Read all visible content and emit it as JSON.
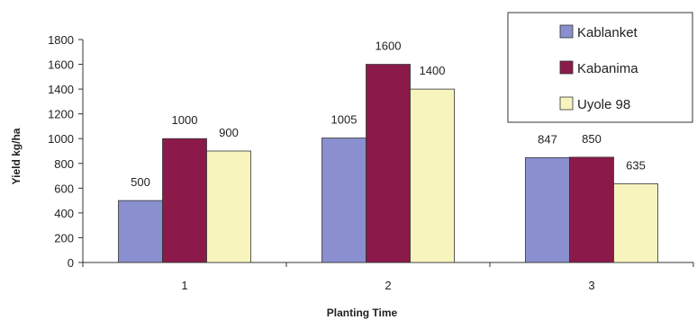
{
  "chart_data": {
    "type": "bar",
    "title": "",
    "xlabel": "Planting Time",
    "ylabel": "Yield kg/ha",
    "categories": [
      "1",
      "2",
      "3"
    ],
    "ylim": [
      0,
      1800
    ],
    "yticks": [
      0,
      200,
      400,
      600,
      800,
      1000,
      1200,
      1400,
      1600,
      1800
    ],
    "grid": false,
    "legend_position": "top-right",
    "series": [
      {
        "name": "Kablanket",
        "color": "#8a8fcf",
        "values": [
          500,
          1005,
          847
        ]
      },
      {
        "name": "Kabanima",
        "color": "#8b1a4a",
        "values": [
          1000,
          1600,
          850
        ]
      },
      {
        "name": "Uyole 98",
        "color": "#f7f5bd",
        "values": [
          900,
          1400,
          635
        ]
      }
    ]
  }
}
